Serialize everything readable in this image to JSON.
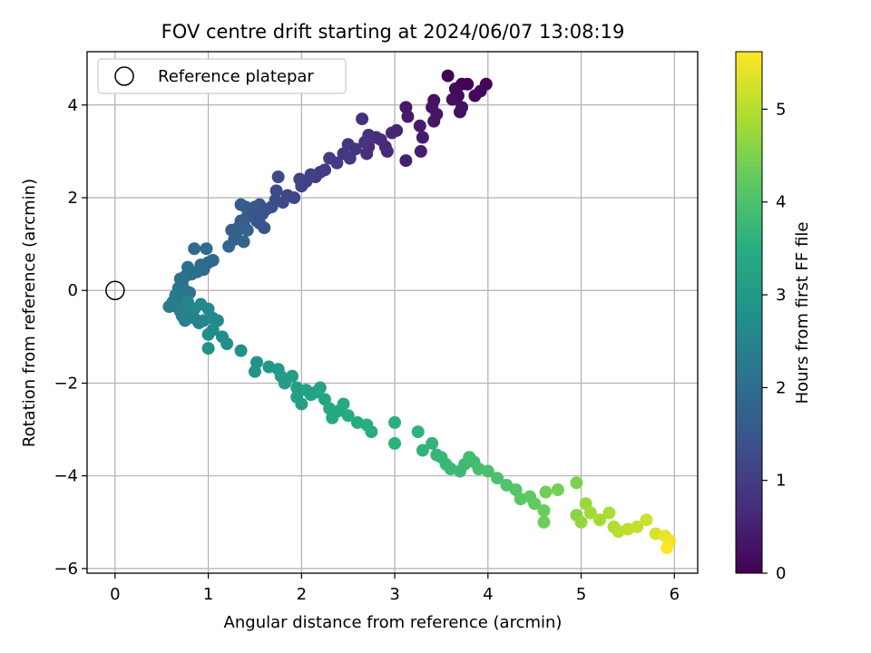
{
  "chart_data": {
    "type": "scatter",
    "title": "FOV centre drift starting at 2024/06/07 13:08:19",
    "xlabel": "Angular distance from reference (arcmin)",
    "ylabel": "Rotation from reference (arcmin)",
    "xlim": [
      -0.3,
      6.25
    ],
    "ylim": [
      -6.1,
      5.15
    ],
    "xticks": [
      "0",
      "1",
      "2",
      "3",
      "4",
      "5",
      "6"
    ],
    "yticks": [
      "−6",
      "−4",
      "−2",
      "0",
      "2",
      "4"
    ],
    "grid": true,
    "legend": {
      "location": "upper left",
      "entries": [
        "Reference platepar"
      ]
    },
    "reference_point": {
      "x": 0,
      "y": 0
    },
    "colorbar": {
      "label": "Hours from first FF file",
      "range": [
        0,
        5.62
      ],
      "ticks": [
        "0",
        "1",
        "2",
        "3",
        "4",
        "5"
      ],
      "colormap": "viridis"
    },
    "series": [
      {
        "points": [
          [
            3.57,
            4.63,
            0.0
          ],
          [
            3.72,
            4.45,
            0.03
          ],
          [
            3.78,
            4.45,
            0.05
          ],
          [
            3.98,
            4.45,
            0.08
          ],
          [
            3.86,
            4.2,
            0.1
          ],
          [
            3.92,
            4.3,
            0.12
          ],
          [
            3.68,
            4.2,
            0.15
          ],
          [
            3.65,
            4.35,
            0.17
          ],
          [
            3.62,
            4.12,
            0.2
          ],
          [
            3.7,
            3.85,
            0.22
          ],
          [
            3.72,
            3.95,
            0.25
          ],
          [
            3.42,
            4.1,
            0.27
          ],
          [
            3.4,
            3.95,
            0.3
          ],
          [
            3.45,
            3.8,
            0.32
          ],
          [
            3.42,
            3.65,
            0.35
          ],
          [
            3.12,
            3.95,
            0.37
          ],
          [
            3.14,
            3.75,
            0.4
          ],
          [
            3.27,
            3.55,
            0.42
          ],
          [
            3.3,
            3.3,
            0.45
          ],
          [
            3.28,
            3.0,
            0.47
          ],
          [
            3.12,
            2.8,
            0.5
          ],
          [
            3.02,
            3.45,
            0.55
          ],
          [
            2.97,
            3.4,
            0.6
          ],
          [
            2.92,
            3.0,
            0.62
          ],
          [
            2.9,
            3.1,
            0.65
          ],
          [
            2.85,
            3.25,
            0.68
          ],
          [
            2.8,
            3.3,
            0.7
          ],
          [
            2.72,
            3.1,
            0.73
          ],
          [
            2.7,
            2.95,
            0.75
          ],
          [
            2.72,
            3.35,
            0.78
          ],
          [
            2.65,
            3.7,
            0.8
          ],
          [
            2.68,
            3.2,
            0.83
          ],
          [
            2.58,
            3.05,
            0.85
          ],
          [
            2.5,
            3.15,
            0.88
          ],
          [
            2.45,
            2.95,
            0.9
          ],
          [
            2.52,
            2.85,
            0.93
          ],
          [
            2.38,
            2.75,
            0.95
          ],
          [
            2.3,
            2.85,
            0.98
          ],
          [
            2.25,
            2.6,
            1.0
          ],
          [
            2.2,
            2.55,
            1.03
          ],
          [
            2.15,
            2.45,
            1.05
          ],
          [
            2.1,
            2.5,
            1.08
          ],
          [
            2.05,
            2.35,
            1.1
          ],
          [
            2.0,
            2.25,
            1.13
          ],
          [
            1.98,
            2.4,
            1.15
          ],
          [
            1.92,
            2.0,
            1.18
          ],
          [
            1.85,
            2.05,
            1.2
          ],
          [
            1.8,
            1.9,
            1.23
          ],
          [
            1.75,
            2.45,
            1.25
          ],
          [
            1.73,
            2.15,
            1.28
          ],
          [
            1.72,
            1.95,
            1.3
          ],
          [
            1.68,
            1.8,
            1.33
          ],
          [
            1.62,
            1.75,
            1.35
          ],
          [
            1.55,
            1.85,
            1.38
          ],
          [
            1.58,
            1.65,
            1.4
          ],
          [
            1.52,
            1.5,
            1.43
          ],
          [
            1.6,
            1.35,
            1.45
          ],
          [
            1.55,
            1.45,
            1.48
          ],
          [
            1.45,
            1.7,
            1.5
          ],
          [
            1.5,
            1.8,
            1.52
          ],
          [
            1.42,
            1.6,
            1.55
          ],
          [
            1.4,
            1.8,
            1.57
          ],
          [
            1.38,
            1.45,
            1.6
          ],
          [
            1.35,
            1.85,
            1.62
          ],
          [
            1.3,
            1.25,
            1.65
          ],
          [
            1.35,
            1.5,
            1.67
          ],
          [
            1.32,
            1.35,
            1.7
          ],
          [
            1.28,
            1.1,
            1.72
          ],
          [
            1.25,
            1.3,
            1.75
          ],
          [
            1.38,
            1.05,
            1.77
          ],
          [
            1.42,
            1.3,
            1.8
          ],
          [
            1.22,
            0.95,
            1.82
          ],
          [
            1.0,
            0.6,
            1.85
          ],
          [
            1.05,
            0.65,
            1.88
          ],
          [
            0.95,
            0.45,
            1.9
          ],
          [
            0.85,
            0.9,
            1.92
          ],
          [
            0.98,
            0.9,
            1.95
          ],
          [
            0.92,
            0.55,
            1.97
          ],
          [
            0.88,
            0.4,
            2.0
          ],
          [
            0.82,
            0.35,
            2.02
          ],
          [
            0.78,
            0.5,
            2.05
          ],
          [
            0.75,
            0.3,
            2.07
          ],
          [
            0.72,
            0.15,
            2.1
          ],
          [
            0.7,
            0.25,
            2.12
          ],
          [
            0.68,
            0.05,
            2.15
          ],
          [
            0.75,
            0.0,
            2.17
          ],
          [
            0.8,
            -0.05,
            2.2
          ],
          [
            0.72,
            -0.15,
            2.22
          ],
          [
            0.65,
            -0.1,
            2.25
          ],
          [
            0.7,
            -0.2,
            2.27
          ],
          [
            0.62,
            -0.25,
            2.3
          ],
          [
            0.66,
            -0.35,
            2.32
          ],
          [
            0.58,
            -0.35,
            2.35
          ],
          [
            0.7,
            -0.45,
            2.37
          ],
          [
            0.72,
            -0.55,
            2.4
          ],
          [
            0.78,
            -0.5,
            2.42
          ],
          [
            0.75,
            -0.65,
            2.45
          ],
          [
            0.85,
            -0.6,
            2.47
          ],
          [
            0.9,
            -0.7,
            2.5
          ],
          [
            0.95,
            -0.65,
            2.52
          ],
          [
            0.85,
            -0.4,
            2.55
          ],
          [
            0.78,
            -0.25,
            2.57
          ],
          [
            0.92,
            -0.3,
            2.6
          ],
          [
            1.0,
            -0.4,
            2.62
          ],
          [
            1.05,
            -0.6,
            2.65
          ],
          [
            1.1,
            -0.65,
            2.67
          ],
          [
            1.05,
            -0.85,
            2.7
          ],
          [
            1.0,
            -0.95,
            2.72
          ],
          [
            1.15,
            -1.0,
            2.75
          ],
          [
            1.2,
            -1.15,
            2.77
          ],
          [
            1.0,
            -1.25,
            2.8
          ],
          [
            1.35,
            -1.3,
            2.82
          ],
          [
            1.52,
            -1.55,
            2.87
          ],
          [
            1.5,
            -1.75,
            2.9
          ],
          [
            1.65,
            -1.65,
            2.95
          ],
          [
            1.75,
            -1.7,
            3.0
          ],
          [
            1.78,
            -1.85,
            3.05
          ],
          [
            1.82,
            -2.0,
            3.08
          ],
          [
            1.9,
            -1.85,
            3.1
          ],
          [
            1.95,
            -2.1,
            3.12
          ],
          [
            1.95,
            -2.3,
            3.15
          ],
          [
            2.0,
            -2.45,
            3.18
          ],
          [
            2.05,
            -2.15,
            3.2
          ],
          [
            2.1,
            -2.25,
            3.22
          ],
          [
            2.15,
            -2.2,
            3.25
          ],
          [
            2.2,
            -2.1,
            3.27
          ],
          [
            2.25,
            -2.35,
            3.3
          ],
          [
            2.3,
            -2.55,
            3.32
          ],
          [
            2.33,
            -2.75,
            3.35
          ],
          [
            2.4,
            -2.6,
            3.37
          ],
          [
            2.45,
            -2.45,
            3.4
          ],
          [
            2.5,
            -2.7,
            3.42
          ],
          [
            2.6,
            -2.85,
            3.45
          ],
          [
            2.7,
            -2.9,
            3.48
          ],
          [
            2.75,
            -3.05,
            3.5
          ],
          [
            3.0,
            -2.85,
            3.55
          ],
          [
            3.0,
            -3.3,
            3.58
          ],
          [
            3.25,
            -3.05,
            3.62
          ],
          [
            3.3,
            -3.45,
            3.65
          ],
          [
            3.4,
            -3.3,
            3.68
          ],
          [
            3.45,
            -3.55,
            3.7
          ],
          [
            3.5,
            -3.6,
            3.72
          ],
          [
            3.55,
            -3.75,
            3.75
          ],
          [
            3.6,
            -3.85,
            3.77
          ],
          [
            3.7,
            -3.9,
            3.8
          ],
          [
            3.75,
            -3.75,
            3.82
          ],
          [
            3.8,
            -3.6,
            3.85
          ],
          [
            3.85,
            -3.7,
            3.87
          ],
          [
            3.9,
            -3.85,
            3.9
          ],
          [
            4.0,
            -3.9,
            3.95
          ],
          [
            4.1,
            -4.05,
            4.0
          ],
          [
            4.2,
            -4.2,
            4.05
          ],
          [
            4.3,
            -4.3,
            4.1
          ],
          [
            4.35,
            -4.5,
            4.15
          ],
          [
            4.45,
            -4.45,
            4.2
          ],
          [
            4.5,
            -4.6,
            4.25
          ],
          [
            4.6,
            -4.75,
            4.3
          ],
          [
            4.6,
            -5.0,
            4.35
          ],
          [
            4.62,
            -4.35,
            4.38
          ],
          [
            4.75,
            -4.3,
            4.42
          ],
          [
            4.95,
            -4.15,
            4.5
          ],
          [
            4.95,
            -4.85,
            4.6
          ],
          [
            5.0,
            -5.0,
            4.7
          ],
          [
            5.05,
            -4.6,
            4.75
          ],
          [
            5.1,
            -4.8,
            4.8
          ],
          [
            5.2,
            -4.95,
            4.85
          ],
          [
            5.3,
            -4.8,
            4.9
          ],
          [
            5.35,
            -5.1,
            4.95
          ],
          [
            5.4,
            -5.2,
            5.0
          ],
          [
            5.5,
            -5.15,
            5.05
          ],
          [
            5.6,
            -5.1,
            5.1
          ],
          [
            5.7,
            -4.95,
            5.2
          ],
          [
            5.8,
            -5.25,
            5.3
          ],
          [
            5.9,
            -5.3,
            5.4
          ],
          [
            5.95,
            -5.4,
            5.5
          ],
          [
            5.92,
            -5.55,
            5.6
          ]
        ]
      }
    ]
  }
}
